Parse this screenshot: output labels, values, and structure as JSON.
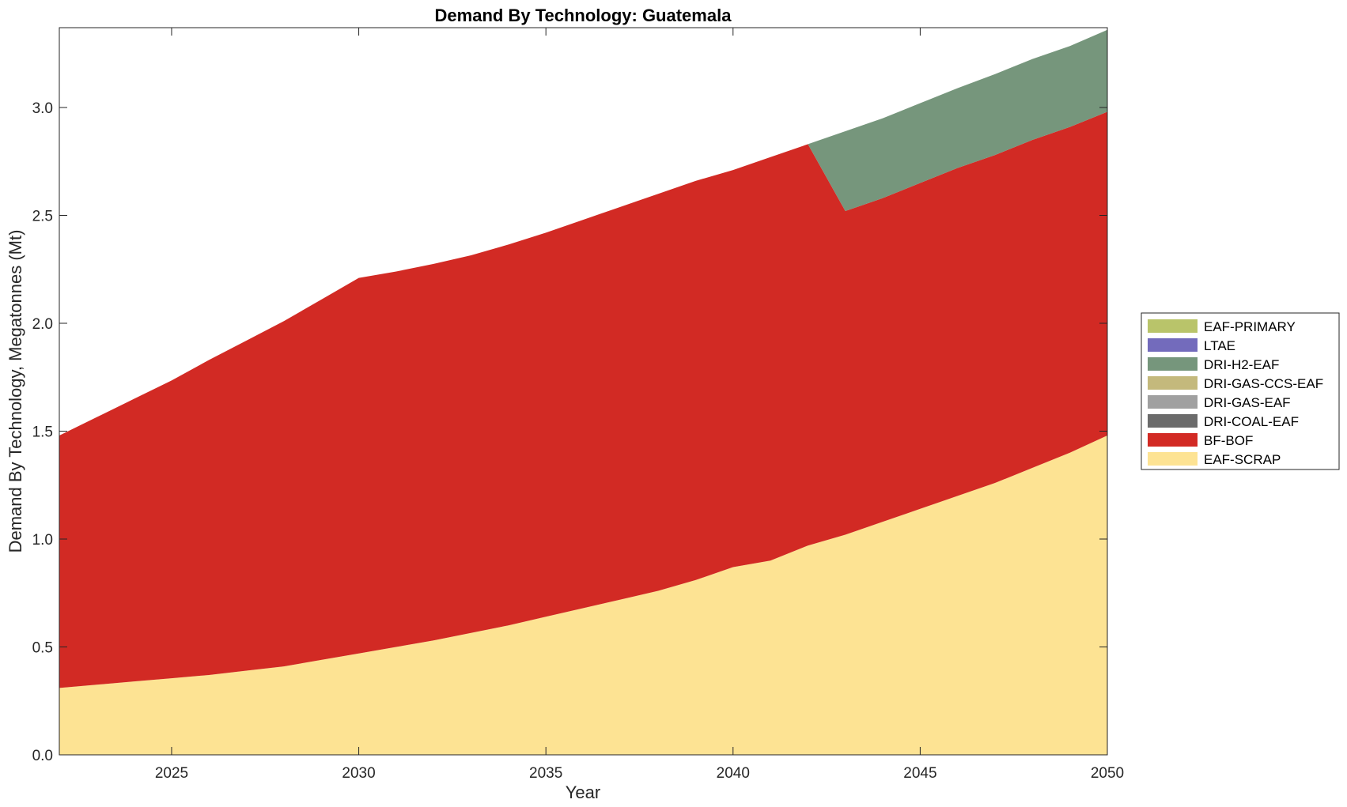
{
  "chart_data": {
    "type": "area",
    "stacked": true,
    "title": "Demand By Technology: Guatemala",
    "xlabel": "Year",
    "ylabel": "Demand By Technology, Megatonnes (Mt)",
    "xlim": [
      2022,
      2050
    ],
    "ylim": [
      0,
      3.37
    ],
    "xticks": [
      2025,
      2030,
      2035,
      2040,
      2045,
      2050
    ],
    "yticks": [
      "0.0",
      "0.5",
      "1.0",
      "1.5",
      "2.0",
      "2.5",
      "3.0"
    ],
    "grid": false,
    "legend_position": "right",
    "x": [
      2022,
      2023,
      2024,
      2025,
      2026,
      2027,
      2028,
      2029,
      2030,
      2031,
      2032,
      2033,
      2034,
      2035,
      2036,
      2037,
      2038,
      2039,
      2040,
      2041,
      2042,
      2043,
      2044,
      2045,
      2046,
      2047,
      2048,
      2049,
      2050
    ],
    "series": [
      {
        "name": "EAF-SCRAP",
        "color": "#FDE393",
        "values": [
          0.31,
          0.325,
          0.34,
          0.355,
          0.37,
          0.39,
          0.41,
          0.44,
          0.47,
          0.5,
          0.53,
          0.565,
          0.6,
          0.64,
          0.68,
          0.72,
          0.76,
          0.81,
          0.87,
          0.9,
          0.97,
          1.02,
          1.08,
          1.14,
          1.2,
          1.26,
          1.33,
          1.4,
          1.48
        ]
      },
      {
        "name": "BF-BOF",
        "color": "#D22A24",
        "values": [
          1.17,
          1.24,
          1.31,
          1.38,
          1.46,
          1.53,
          1.6,
          1.67,
          1.74,
          1.74,
          1.745,
          1.75,
          1.765,
          1.78,
          1.8,
          1.82,
          1.84,
          1.85,
          1.84,
          1.87,
          1.86,
          1.5,
          1.5,
          1.51,
          1.52,
          1.52,
          1.52,
          1.51,
          1.5
        ]
      },
      {
        "name": "DRI-COAL-EAF",
        "color": "#6B6B6B",
        "values": [
          0,
          0,
          0,
          0,
          0,
          0,
          0,
          0,
          0,
          0,
          0,
          0,
          0,
          0,
          0,
          0,
          0,
          0,
          0,
          0,
          0,
          0,
          0,
          0,
          0,
          0,
          0,
          0,
          0
        ]
      },
      {
        "name": "DRI-GAS-EAF",
        "color": "#A0A0A0",
        "values": [
          0,
          0,
          0,
          0,
          0,
          0,
          0,
          0,
          0,
          0,
          0,
          0,
          0,
          0,
          0,
          0,
          0,
          0,
          0,
          0,
          0,
          0,
          0,
          0,
          0,
          0,
          0,
          0,
          0
        ]
      },
      {
        "name": "DRI-GAS-CCS-EAF",
        "color": "#C4B97C",
        "values": [
          0,
          0,
          0,
          0,
          0,
          0,
          0,
          0,
          0,
          0,
          0,
          0,
          0,
          0,
          0,
          0,
          0,
          0,
          0,
          0,
          0,
          0,
          0,
          0,
          0,
          0,
          0,
          0,
          0
        ]
      },
      {
        "name": "DRI-H2-EAF",
        "color": "#76967C",
        "values": [
          0,
          0,
          0,
          0,
          0,
          0,
          0,
          0,
          0,
          0,
          0,
          0,
          0,
          0,
          0,
          0,
          0,
          0,
          0,
          0,
          0,
          0.37,
          0.37,
          0.37,
          0.37,
          0.375,
          0.375,
          0.375,
          0.38
        ]
      },
      {
        "name": "LTAE",
        "color": "#736BBC",
        "values": [
          0,
          0,
          0,
          0,
          0,
          0,
          0,
          0,
          0,
          0,
          0,
          0,
          0,
          0,
          0,
          0,
          0,
          0,
          0,
          0,
          0,
          0,
          0,
          0,
          0,
          0,
          0,
          0,
          0
        ]
      },
      {
        "name": "EAF-PRIMARY",
        "color": "#B9C46A",
        "values": [
          0,
          0,
          0,
          0,
          0,
          0,
          0,
          0,
          0,
          0,
          0,
          0,
          0,
          0,
          0,
          0,
          0,
          0,
          0,
          0,
          0,
          0,
          0,
          0,
          0,
          0,
          0,
          0,
          0
        ]
      }
    ],
    "legend_order": [
      "EAF-PRIMARY",
      "LTAE",
      "DRI-H2-EAF",
      "DRI-GAS-CCS-EAF",
      "DRI-GAS-EAF",
      "DRI-COAL-EAF",
      "BF-BOF",
      "EAF-SCRAP"
    ]
  }
}
